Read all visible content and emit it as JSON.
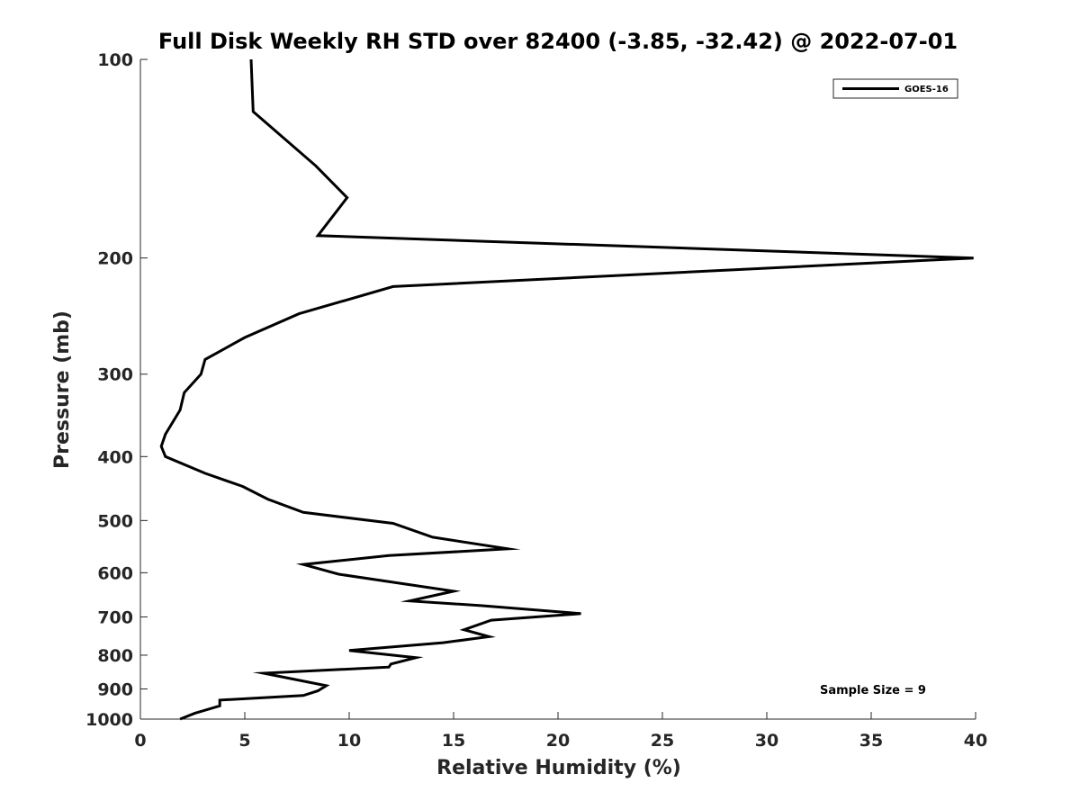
{
  "chart_data": {
    "type": "line",
    "title": "Full Disk Weekly RH STD over 82400 (-3.85, -32.42) @ 2022-07-01",
    "xlabel": "Relative Humidity (%)",
    "ylabel": "Pressure (mb)",
    "xlim": [
      0,
      40
    ],
    "ylim": [
      100,
      1000
    ],
    "yscale": "log",
    "reverse_y": true,
    "grid": false,
    "legend_position": "top-right",
    "x_ticks": [
      0,
      5,
      10,
      15,
      20,
      25,
      30,
      35,
      40
    ],
    "x_tick_labels": [
      "0",
      "5",
      "10",
      "15",
      "20",
      "25",
      "30",
      "35",
      "40"
    ],
    "y_ticks": [
      100,
      200,
      300,
      400,
      500,
      600,
      700,
      800,
      900,
      1000
    ],
    "y_tick_labels": [
      "100",
      "200",
      "300",
      "400",
      "500",
      "600",
      "700",
      "800",
      "900",
      "1000"
    ],
    "series": [
      {
        "name": "GOES-16",
        "color": "#000000",
        "points": [
          [
            5.3,
            100
          ],
          [
            5.4,
            120
          ],
          [
            8.4,
            145
          ],
          [
            9.9,
            162
          ],
          [
            8.5,
            185
          ],
          [
            39.9,
            200
          ],
          [
            12.1,
            221
          ],
          [
            7.6,
            243
          ],
          [
            5.0,
            264
          ],
          [
            3.1,
            285
          ],
          [
            2.9,
            300
          ],
          [
            2.1,
            320
          ],
          [
            1.9,
            340
          ],
          [
            1.2,
            370
          ],
          [
            1.0,
            386
          ],
          [
            1.2,
            400
          ],
          [
            3.1,
            424
          ],
          [
            4.9,
            444
          ],
          [
            6.1,
            464
          ],
          [
            7.8,
            486
          ],
          [
            12.1,
            505
          ],
          [
            14.0,
            530
          ],
          [
            17.6,
            552
          ],
          [
            11.9,
            565
          ],
          [
            7.8,
            583
          ],
          [
            9.5,
            603
          ],
          [
            15.0,
            640
          ],
          [
            12.9,
            662
          ],
          [
            16.3,
            673
          ],
          [
            21.1,
            692
          ],
          [
            16.8,
            708
          ],
          [
            15.5,
            732
          ],
          [
            16.7,
            750
          ],
          [
            14.5,
            766
          ],
          [
            10.0,
            787
          ],
          [
            13.2,
            807
          ],
          [
            12.0,
            825
          ],
          [
            11.9,
            834
          ],
          [
            5.9,
            852
          ],
          [
            8.9,
            890
          ],
          [
            8.5,
            906
          ],
          [
            7.8,
            921
          ],
          [
            3.8,
            936
          ],
          [
            3.8,
            955
          ],
          [
            2.6,
            980
          ],
          [
            1.9,
            1000
          ]
        ]
      }
    ],
    "annotation": "Sample Size = 9"
  }
}
